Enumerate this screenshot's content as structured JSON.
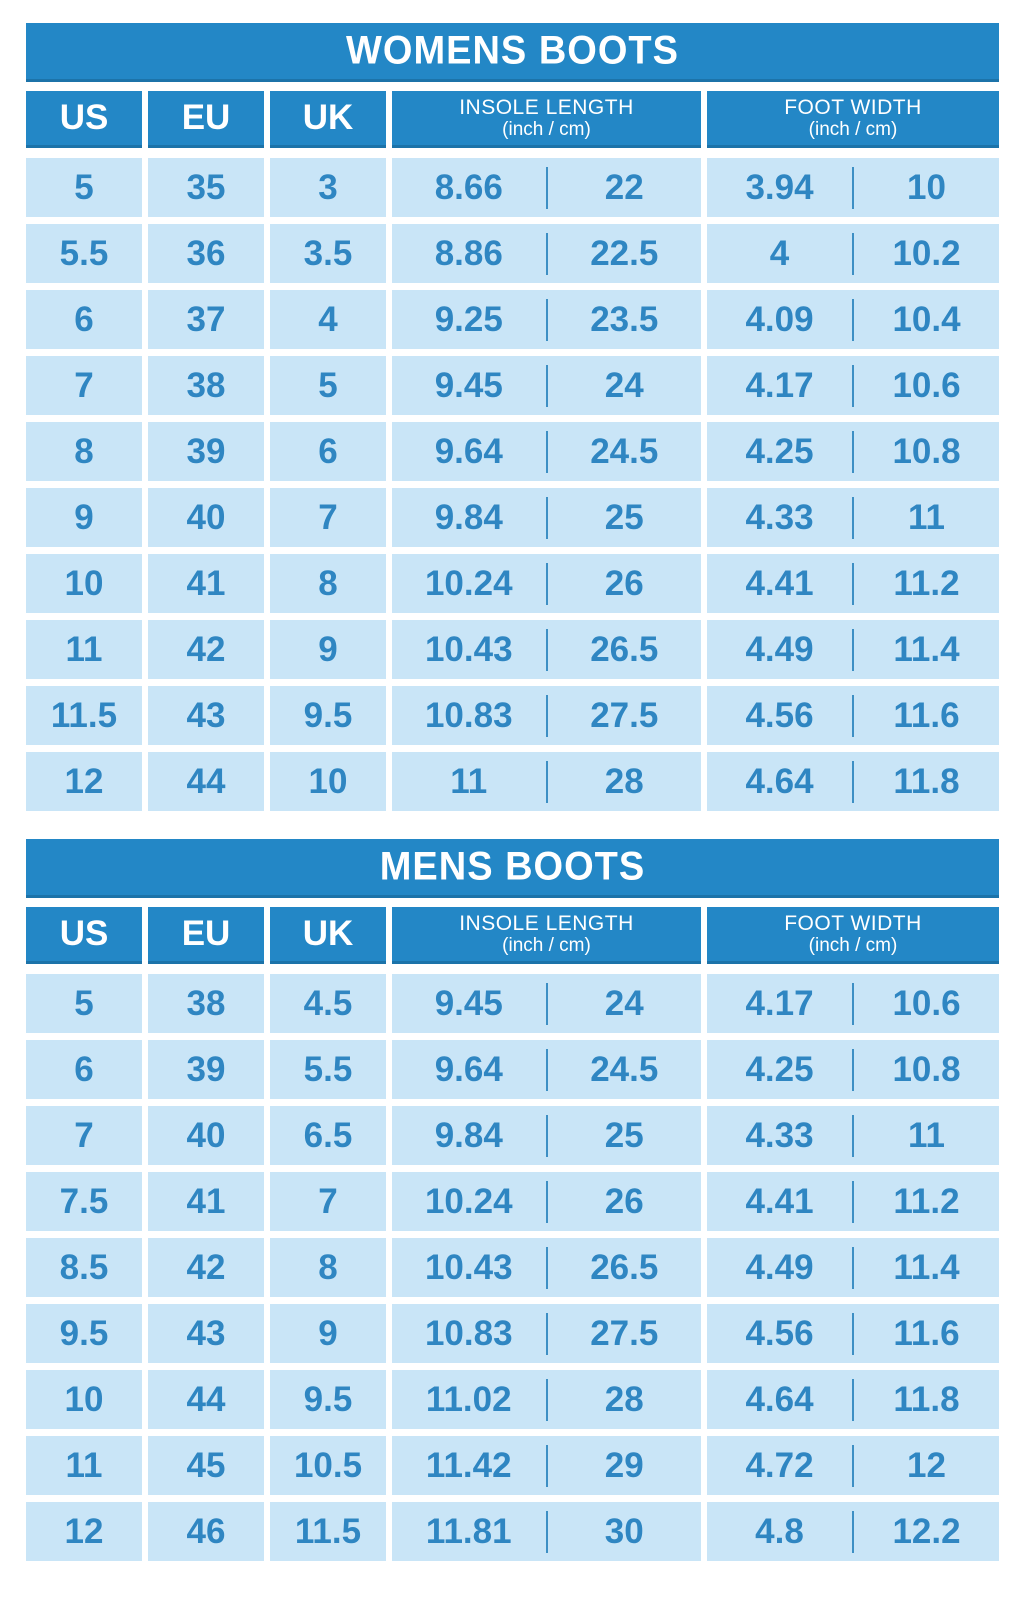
{
  "colors": {
    "header_blue": "#2387c6",
    "cell_light_blue": "#c9e5f7",
    "value_text_blue": "#2f86c2",
    "divider_blue": "#3d8fc4",
    "title_text": "#ffffff",
    "page_background": "#ffffff"
  },
  "chart_data": [
    {
      "type": "table",
      "title": "WOMENS BOOTS",
      "header": {
        "us": "US",
        "eu": "EU",
        "uk": "UK",
        "insole_line1": "INSOLE LENGTH",
        "insole_line2": "(inch / cm)",
        "foot_line1": "FOOT WIDTH",
        "foot_line2": "(inch / cm)"
      },
      "columns": [
        "US",
        "EU",
        "UK",
        "INSOLE LENGTH inch",
        "INSOLE LENGTH cm",
        "FOOT WIDTH inch",
        "FOOT WIDTH cm"
      ],
      "rows": [
        [
          "5",
          "35",
          "3",
          "8.66",
          "22",
          "3.94",
          "10"
        ],
        [
          "5.5",
          "36",
          "3.5",
          "8.86",
          "22.5",
          "4",
          "10.2"
        ],
        [
          "6",
          "37",
          "4",
          "9.25",
          "23.5",
          "4.09",
          "10.4"
        ],
        [
          "7",
          "38",
          "5",
          "9.45",
          "24",
          "4.17",
          "10.6"
        ],
        [
          "8",
          "39",
          "6",
          "9.64",
          "24.5",
          "4.25",
          "10.8"
        ],
        [
          "9",
          "40",
          "7",
          "9.84",
          "25",
          "4.33",
          "11"
        ],
        [
          "10",
          "41",
          "8",
          "10.24",
          "26",
          "4.41",
          "11.2"
        ],
        [
          "11",
          "42",
          "9",
          "10.43",
          "26.5",
          "4.49",
          "11.4"
        ],
        [
          "11.5",
          "43",
          "9.5",
          "10.83",
          "27.5",
          "4.56",
          "11.6"
        ],
        [
          "12",
          "44",
          "10",
          "11",
          "28",
          "4.64",
          "11.8"
        ]
      ]
    },
    {
      "type": "table",
      "title": "MENS BOOTS",
      "header": {
        "us": "US",
        "eu": "EU",
        "uk": "UK",
        "insole_line1": "INSOLE LENGTH",
        "insole_line2": "(inch / cm)",
        "foot_line1": "FOOT WIDTH",
        "foot_line2": "(inch / cm)"
      },
      "columns": [
        "US",
        "EU",
        "UK",
        "INSOLE LENGTH inch",
        "INSOLE LENGTH cm",
        "FOOT WIDTH inch",
        "FOOT WIDTH cm"
      ],
      "rows": [
        [
          "5",
          "38",
          "4.5",
          "9.45",
          "24",
          "4.17",
          "10.6"
        ],
        [
          "6",
          "39",
          "5.5",
          "9.64",
          "24.5",
          "4.25",
          "10.8"
        ],
        [
          "7",
          "40",
          "6.5",
          "9.84",
          "25",
          "4.33",
          "11"
        ],
        [
          "7.5",
          "41",
          "7",
          "10.24",
          "26",
          "4.41",
          "11.2"
        ],
        [
          "8.5",
          "42",
          "8",
          "10.43",
          "26.5",
          "4.49",
          "11.4"
        ],
        [
          "9.5",
          "43",
          "9",
          "10.83",
          "27.5",
          "4.56",
          "11.6"
        ],
        [
          "10",
          "44",
          "9.5",
          "11.02",
          "28",
          "4.64",
          "11.8"
        ],
        [
          "11",
          "45",
          "10.5",
          "11.42",
          "29",
          "4.72",
          "12"
        ],
        [
          "12",
          "46",
          "11.5",
          "11.81",
          "30",
          "4.8",
          "12.2"
        ]
      ]
    }
  ]
}
